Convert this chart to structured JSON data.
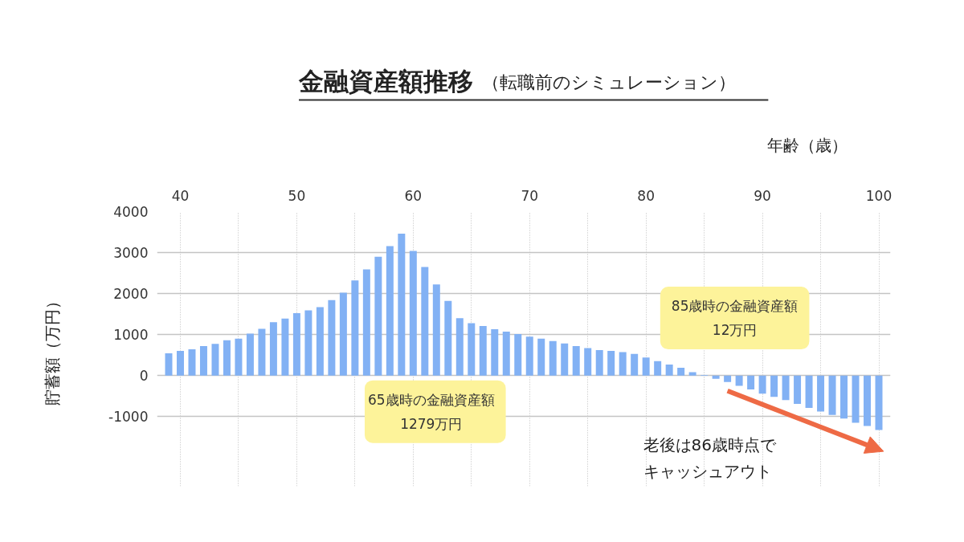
{
  "chart_data": {
    "type": "bar",
    "title": "金融資産額推移",
    "subtitle": "（転職前のシミュレーション）",
    "xlabel": "年齢（歳）",
    "ylabel": "貯蓄額（万円）",
    "x": [
      39,
      40,
      41,
      42,
      43,
      44,
      45,
      46,
      47,
      48,
      49,
      50,
      51,
      52,
      53,
      54,
      55,
      56,
      57,
      58,
      59,
      60,
      61,
      62,
      63,
      64,
      65,
      66,
      67,
      68,
      69,
      70,
      71,
      72,
      73,
      74,
      75,
      76,
      77,
      78,
      79,
      80,
      81,
      82,
      83,
      84,
      85,
      86,
      87,
      88,
      89,
      90,
      91,
      92,
      93,
      94,
      95,
      96,
      97,
      98,
      99,
      100
    ],
    "values": [
      540,
      600,
      640,
      720,
      770,
      860,
      900,
      1020,
      1140,
      1300,
      1390,
      1520,
      1590,
      1670,
      1840,
      2020,
      2320,
      2590,
      2900,
      3160,
      3460,
      3040,
      2650,
      2220,
      1820,
      1400,
      1279,
      1210,
      1130,
      1070,
      1010,
      950,
      900,
      840,
      780,
      720,
      670,
      620,
      600,
      570,
      530,
      440,
      350,
      270,
      190,
      80,
      12,
      -80,
      -160,
      -250,
      -340,
      -440,
      -520,
      -600,
      -690,
      -790,
      -880,
      -960,
      -1050,
      -1150,
      -1230,
      -1330
    ],
    "color": "#82b1f4",
    "xlim": [
      38,
      101
    ],
    "ylim": [
      -2700,
      4000
    ],
    "xticks": [
      40,
      {
        "value": 45,
        "label": null
      },
      50,
      {
        "value": 55,
        "label": null
      },
      60,
      {
        "value": 65,
        "label": null
      },
      70,
      {
        "value": 75,
        "label": null
      },
      80,
      {
        "value": 85,
        "label": null
      },
      90,
      {
        "value": 95,
        "label": null
      },
      100
    ],
    "yticks": [
      -1000,
      0,
      1000,
      2000,
      3000,
      4000
    ],
    "grid": true,
    "annotations": [
      {
        "text": "65歳時の金融資産額\n1279万円",
        "x": 65,
        "y": 0
      },
      {
        "text": "85歳時の金融資産額\n12万円",
        "x": 85,
        "y": 12
      },
      "老後は86歳時点でキャッシュアウト"
    ]
  }
}
